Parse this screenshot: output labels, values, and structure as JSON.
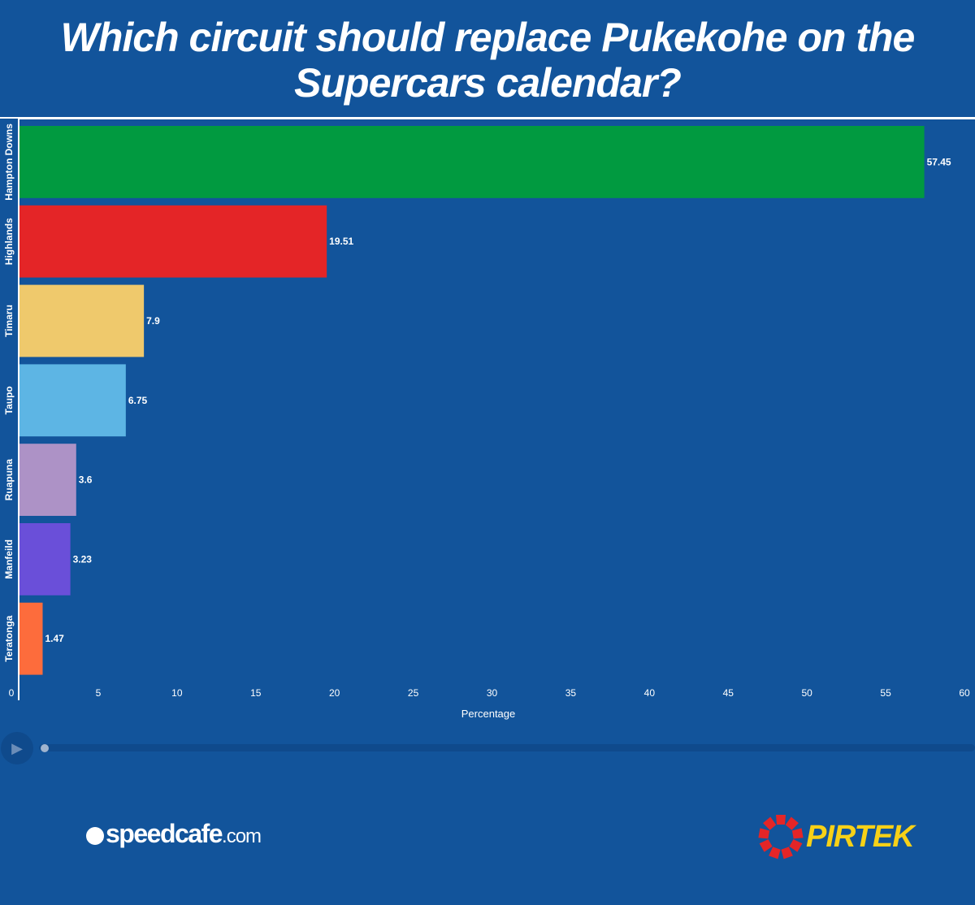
{
  "title": "Which circuit should replace Pukekohe on the Supercars calendar?",
  "chart_data": {
    "type": "bar",
    "orientation": "horizontal",
    "categories": [
      "Hampton Downs",
      "Highlands",
      "Timaru",
      "Taupo",
      "Ruapuna",
      "Manfeild",
      "Teratonga"
    ],
    "values": [
      57.45,
      19.51,
      7.9,
      6.75,
      3.6,
      3.23,
      1.47
    ],
    "data_labels": [
      "57.45",
      "19.51",
      "7.9",
      "6.75",
      "3.6",
      "3.23",
      "1.47"
    ],
    "colors": [
      "#019a40",
      "#e42527",
      "#efc96c",
      "#5db5e4",
      "#ad92c6",
      "#6a4fd9",
      "#fd6c3c"
    ],
    "xlabel": "Percentage",
    "ylabel": "",
    "xlim": [
      0,
      60
    ],
    "xticks": [
      "0",
      "5",
      "10",
      "15",
      "20",
      "25",
      "30",
      "35",
      "40",
      "45",
      "50",
      "55",
      "60"
    ],
    "grid": false,
    "legend": "none"
  },
  "player": {
    "play_icon": "play-icon"
  },
  "logos": {
    "speedcafe_main": "speedcafe",
    "speedcafe_com": ".com",
    "pirtek": "PIRTEK"
  },
  "colors": {
    "background": "#12549b",
    "pirtek_yellow": "#f7d117",
    "pirtek_red": "#e42527"
  }
}
